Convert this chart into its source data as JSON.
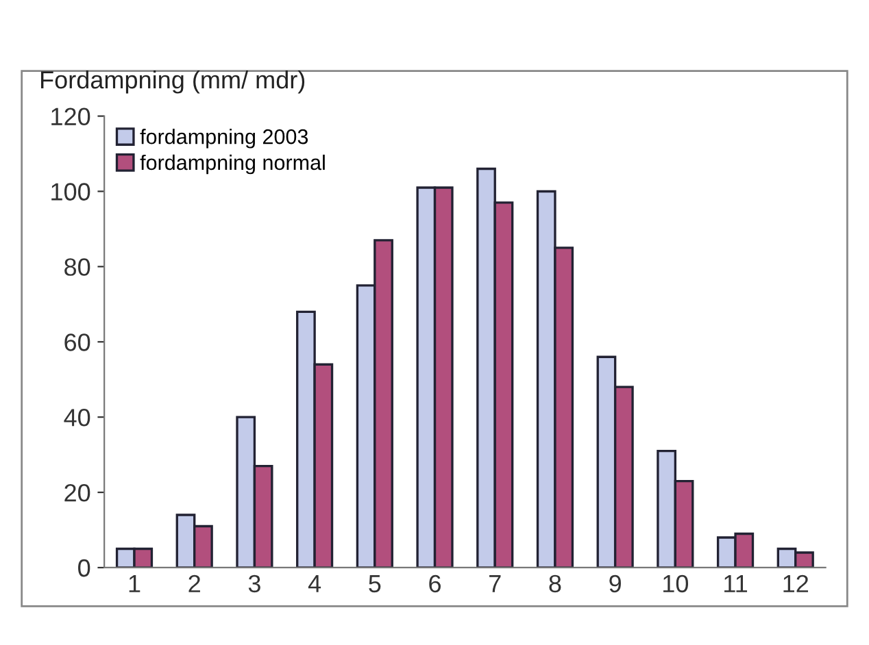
{
  "chart_data": {
    "type": "bar",
    "ylabel": "Fordampning (mm/ mdr)",
    "categories": [
      "1",
      "2",
      "3",
      "4",
      "5",
      "6",
      "7",
      "8",
      "9",
      "10",
      "11",
      "12"
    ],
    "series": [
      {
        "name": "fordampning 2003",
        "color": "#c3cbea",
        "values": [
          5,
          14,
          40,
          68,
          75,
          101,
          106,
          100,
          56,
          31,
          8,
          5
        ]
      },
      {
        "name": "fordampning normal",
        "color": "#b24f7d",
        "values": [
          5,
          11,
          27,
          54,
          87,
          101,
          97,
          85,
          48,
          23,
          9,
          4
        ]
      }
    ],
    "ylim": [
      0,
      120
    ],
    "yticks": [
      0,
      20,
      40,
      60,
      80,
      100,
      120
    ],
    "grid": false,
    "legend": "top left"
  }
}
